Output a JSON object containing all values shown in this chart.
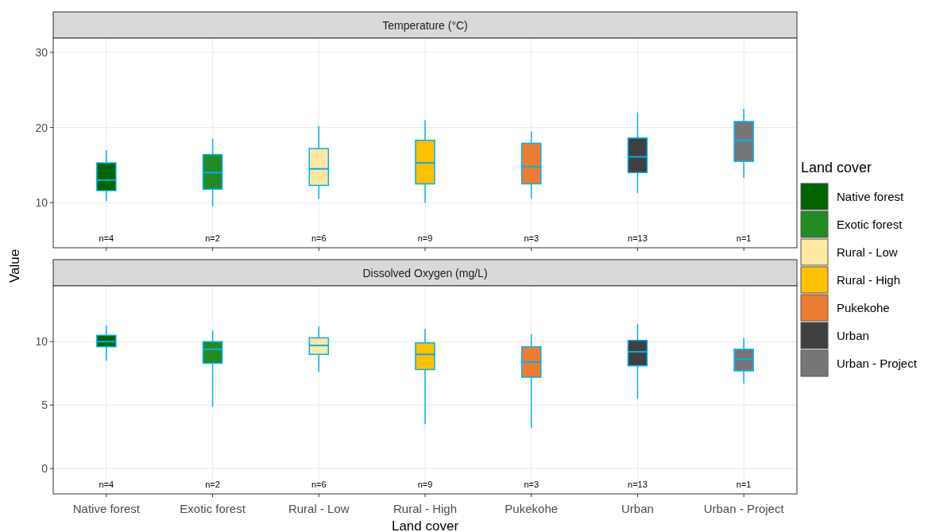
{
  "chart_data": [
    {
      "type": "box",
      "title": "Temperature (°C)",
      "ylabel": "Value",
      "legend_title": "Land cover",
      "legend": "right",
      "grid": true,
      "tick_labels": "y",
      "categories": [
        null,
        null,
        null,
        null,
        null,
        null,
        null
      ],
      "ylim": [
        4,
        31.9
      ],
      "yticks": [
        10,
        20,
        30
      ],
      "series": [
        {
          "name": "Native forest",
          "color": "#006400",
          "boxes": [
            {
              "low": 10.2,
              "q1": 11.6,
              "median": 13.0,
              "q3": 15.3,
              "high": 17.0
            },
            null,
            null,
            null,
            null,
            null,
            null
          ]
        },
        {
          "name": "Exotic forest",
          "color": "#228b22",
          "boxes": [
            null,
            {
              "low": 9.5,
              "q1": 11.8,
              "median": 14.0,
              "q3": 16.4,
              "high": 18.5
            },
            null,
            null,
            null,
            null,
            null
          ]
        },
        {
          "name": "Rural - Low",
          "color": "#ffe8a3",
          "boxes": [
            null,
            null,
            {
              "low": 10.5,
              "q1": 12.3,
              "median": 14.5,
              "q3": 17.2,
              "high": 20.2
            },
            null,
            null,
            null,
            null
          ]
        },
        {
          "name": "Rural - High",
          "color": "#ffc000",
          "boxes": [
            null,
            null,
            null,
            {
              "low": 10.0,
              "q1": 12.5,
              "median": 15.3,
              "q3": 18.3,
              "high": 21.0
            },
            null,
            null,
            null
          ]
        },
        {
          "name": "Pukekohe",
          "color": "#ed7d31",
          "boxes": [
            null,
            null,
            null,
            null,
            {
              "low": 10.5,
              "q1": 12.5,
              "median": 14.8,
              "q3": 17.9,
              "high": 19.5
            },
            null,
            null
          ]
        },
        {
          "name": "Urban",
          "color": "#404040",
          "boxes": [
            null,
            null,
            null,
            null,
            null,
            {
              "low": 11.3,
              "q1": 14.0,
              "median": 16.1,
              "q3": 18.6,
              "high": 22.0
            },
            null
          ]
        },
        {
          "name": "Urban - Project",
          "color": "#767676",
          "boxes": [
            null,
            null,
            null,
            null,
            null,
            null,
            {
              "low": 13.3,
              "q1": 15.5,
              "median": 18.3,
              "q3": 20.8,
              "high": 22.5
            }
          ]
        }
      ],
      "annotations": [
        "n=4",
        "n=2",
        "n=6",
        "n=9",
        "n=3",
        "n=13",
        "n=1"
      ]
    },
    {
      "type": "box",
      "title": "Dissolved Oxygen (mg/L)",
      "xlabel": "Land cover",
      "grid": true,
      "categories": [
        "Native forest",
        "Exotic forest",
        "Rural - Low",
        "Rural - High",
        "Pukekohe",
        "Urban",
        "Urban - Project"
      ],
      "ylim": [
        -2,
        14.4
      ],
      "yticks": [
        0,
        5,
        10
      ],
      "series": [
        {
          "color": "#006400",
          "boxes": [
            {
              "low": 8.5,
              "q1": 9.6,
              "median": 10.0,
              "q3": 10.5,
              "high": 11.3
            },
            null,
            null,
            null,
            null,
            null,
            null
          ]
        },
        {
          "color": "#228b22",
          "boxes": [
            null,
            {
              "low": 4.9,
              "q1": 8.3,
              "median": 9.4,
              "q3": 10.0,
              "high": 10.9
            },
            null,
            null,
            null,
            null,
            null
          ]
        },
        {
          "color": "#ffe8a3",
          "boxes": [
            null,
            null,
            {
              "low": 7.6,
              "q1": 9.0,
              "median": 9.7,
              "q3": 10.3,
              "high": 11.2
            },
            null,
            null,
            null,
            null
          ]
        },
        {
          "color": "#ffc000",
          "boxes": [
            null,
            null,
            null,
            {
              "low": 3.5,
              "q1": 7.8,
              "median": 9.0,
              "q3": 9.9,
              "high": 11.0
            },
            null,
            null,
            null
          ]
        },
        {
          "color": "#ed7d31",
          "boxes": [
            null,
            null,
            null,
            null,
            {
              "low": 3.2,
              "q1": 7.2,
              "median": 8.4,
              "q3": 9.6,
              "high": 10.6
            },
            null,
            null
          ]
        },
        {
          "color": "#404040",
          "boxes": [
            null,
            null,
            null,
            null,
            null,
            {
              "low": 5.5,
              "q1": 8.1,
              "median": 9.2,
              "q3": 10.1,
              "high": 11.4
            },
            null
          ]
        },
        {
          "color": "#767676",
          "boxes": [
            null,
            null,
            null,
            null,
            null,
            null,
            {
              "low": 6.7,
              "q1": 7.7,
              "median": 8.6,
              "q3": 9.4,
              "high": 10.3
            }
          ]
        }
      ],
      "annotations": [
        "n=4",
        "n=2",
        "n=6",
        "n=9",
        "n=3",
        "n=13",
        "n=1"
      ]
    }
  ]
}
